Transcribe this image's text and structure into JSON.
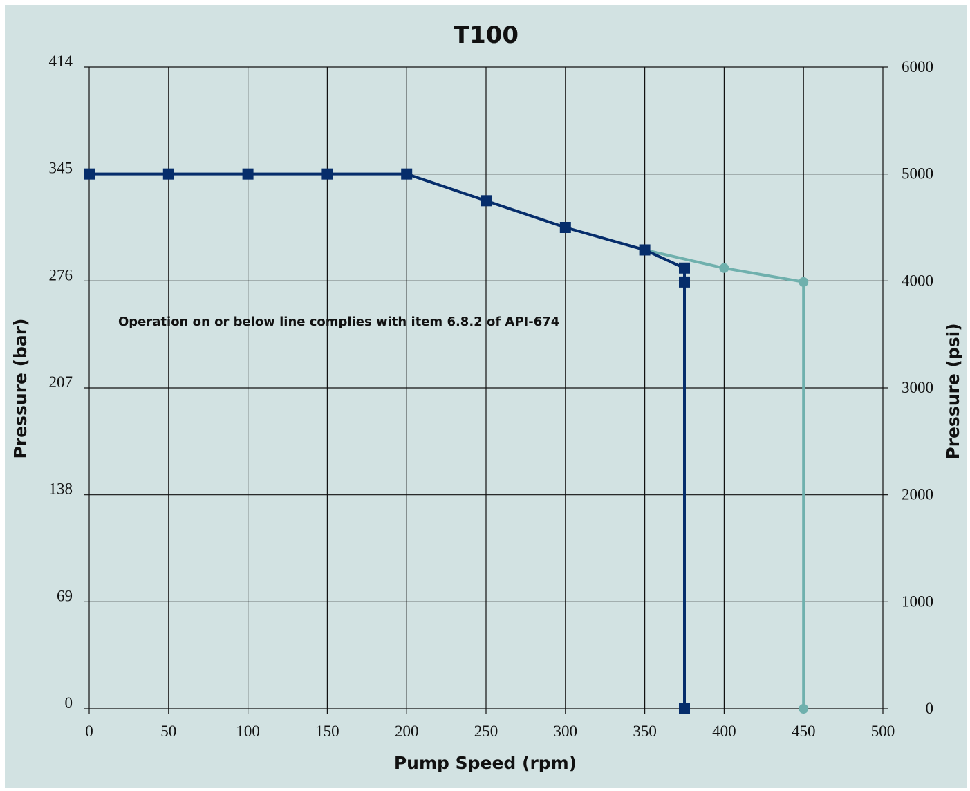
{
  "chart_data": {
    "type": "line",
    "title": "T100",
    "xlabel": "Pump Speed (rpm)",
    "ylabel_left": "Pressure (bar)",
    "ylabel_right": "Pressure (psi)",
    "xlim": [
      0,
      500
    ],
    "ylim_psi": [
      0,
      6000
    ],
    "x_ticks": [
      "0",
      "50",
      "100",
      "150",
      "200",
      "250",
      "300",
      "350",
      "400",
      "450",
      "500"
    ],
    "y_left_ticks": [
      "0",
      "69",
      "138",
      "207",
      "276",
      "345",
      "414"
    ],
    "y_right_ticks": [
      "0",
      "1000",
      "2000",
      "3000",
      "4000",
      "5000",
      "6000"
    ],
    "grid": true,
    "annotation": "Operation on or below line complies with item 6.8.2 of API-674",
    "series": [
      {
        "color": "#062d6b",
        "marker": "square",
        "points": [
          {
            "x": 0,
            "y": 5000
          },
          {
            "x": 50,
            "y": 5000
          },
          {
            "x": 100,
            "y": 5000
          },
          {
            "x": 150,
            "y": 5000
          },
          {
            "x": 200,
            "y": 5000
          },
          {
            "x": 250,
            "y": 4750
          },
          {
            "x": 300,
            "y": 4500
          },
          {
            "x": 350,
            "y": 4290
          },
          {
            "x": 375,
            "y": 4120
          },
          {
            "x": 375,
            "y": 3990
          },
          {
            "x": 375,
            "y": 0
          }
        ]
      },
      {
        "color": "#6fb0ad",
        "marker": "circle",
        "points": [
          {
            "x": 350,
            "y": 4290
          },
          {
            "x": 400,
            "y": 4120
          },
          {
            "x": 450,
            "y": 3990
          },
          {
            "x": 450,
            "y": 0
          }
        ]
      }
    ]
  }
}
